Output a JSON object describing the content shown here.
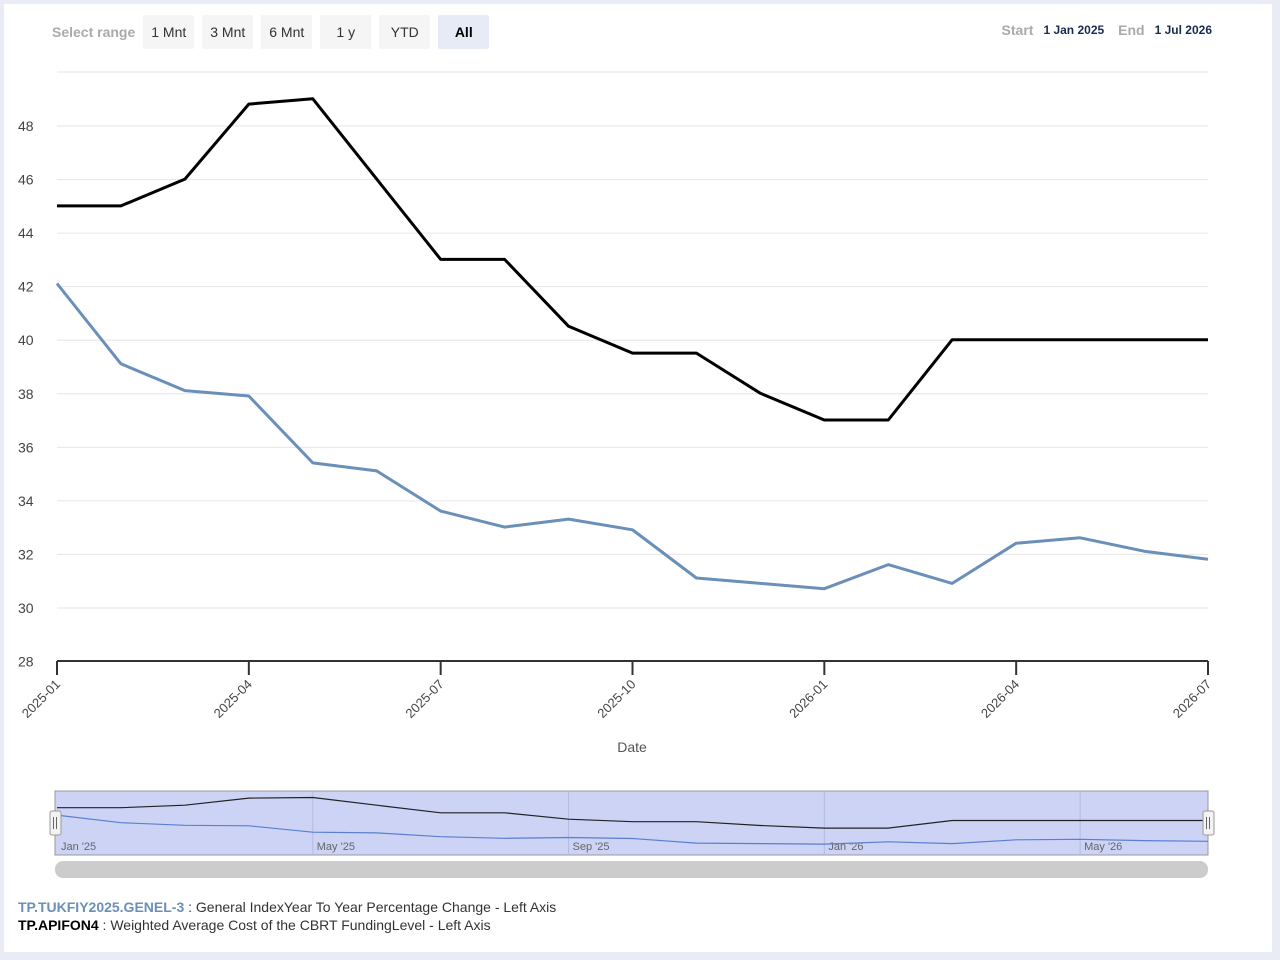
{
  "range_selector": {
    "label": "Select range",
    "buttons": [
      {
        "label": "1 Mnt",
        "active": false
      },
      {
        "label": "3 Mnt",
        "active": false
      },
      {
        "label": "6 Mnt",
        "active": false
      },
      {
        "label": "1 y",
        "active": false
      },
      {
        "label": "YTD",
        "active": false
      },
      {
        "label": "All",
        "active": true
      }
    ]
  },
  "date_range": {
    "start_label": "Start",
    "start_value": "1 Jan 2025",
    "end_label": "End",
    "end_value": "1 Jul 2026"
  },
  "chart_data": {
    "type": "line",
    "xlabel": "Date",
    "ylabel": "",
    "ylim": [
      28,
      50
    ],
    "y_ticks": [
      28,
      30,
      32,
      34,
      36,
      38,
      40,
      42,
      44,
      46,
      48
    ],
    "x_ticks": [
      "2025-01",
      "2025-04",
      "2025-07",
      "2025-10",
      "2026-01",
      "2026-04",
      "2026-07"
    ],
    "x": [
      "2025-01",
      "2025-02",
      "2025-03",
      "2025-04",
      "2025-05",
      "2025-06",
      "2025-07",
      "2025-08",
      "2025-09",
      "2025-10",
      "2025-11",
      "2025-12",
      "2026-01",
      "2026-02",
      "2026-03",
      "2026-04",
      "2026-05",
      "2026-06",
      "2026-07"
    ],
    "grid": true,
    "series": [
      {
        "name": "TP.TUKFIY2025.GENEL-3",
        "color": "#6a8fb8",
        "values": [
          42.1,
          39.1,
          38.1,
          37.9,
          35.4,
          35.1,
          33.6,
          33.0,
          33.3,
          32.9,
          31.1,
          30.9,
          30.7,
          31.6,
          30.9,
          32.4,
          32.6,
          32.1,
          31.8
        ]
      },
      {
        "name": "TP.APIFON4",
        "color": "#000000",
        "values": [
          45.0,
          45.0,
          46.0,
          48.8,
          49.0,
          46.0,
          43.0,
          43.0,
          40.5,
          39.5,
          39.5,
          38.0,
          37.0,
          37.0,
          40.0,
          40.0,
          40.0,
          40.0,
          40.0
        ]
      }
    ],
    "navigator": {
      "labels": [
        "Jan '25",
        "May '25",
        "Sep '25",
        "Jan '26",
        "May '26"
      ],
      "label_months": [
        "2025-01",
        "2025-05",
        "2025-09",
        "2026-01",
        "2026-05"
      ]
    }
  },
  "legend": [
    {
      "code": "TP.TUKFIY2025.GENEL-3",
      "description": " : General IndexYear To Year Percentage Change - Left Axis"
    },
    {
      "code": "TP.APIFON4",
      "description": " : Weighted Average Cost of the CBRT FundingLevel - Left Axis"
    }
  ]
}
